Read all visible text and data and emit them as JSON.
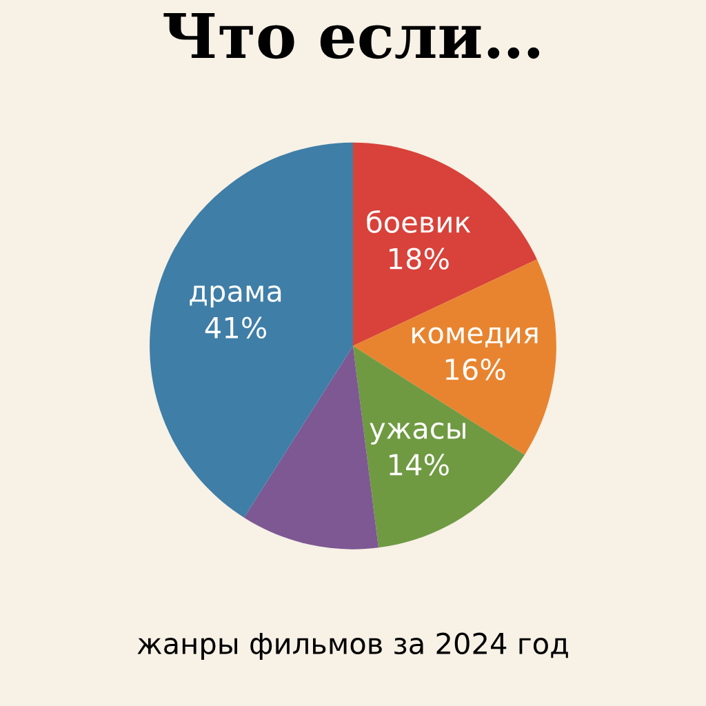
{
  "chart_data": {
    "type": "pie",
    "title": "Что если…",
    "subtitle": "жанры фильмов за 2024 год",
    "categories": [
      "боевик",
      "комедия",
      "ужасы",
      null,
      "драма"
    ],
    "values": [
      18,
      16,
      14,
      11,
      41
    ],
    "value_labels": [
      "18%",
      "16%",
      "14%",
      null,
      "41%"
    ],
    "colors": [
      "#d8423a",
      "#e8842f",
      "#6f9a42",
      "#7d5893",
      "#3f7ea7"
    ],
    "legend": false
  }
}
